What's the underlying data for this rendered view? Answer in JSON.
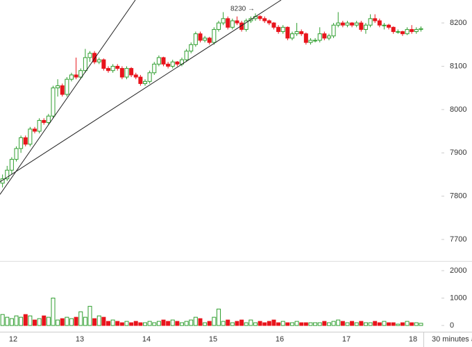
{
  "chart_data": [
    {
      "type": "candlestick",
      "up_color": "#2e9e2e",
      "down_color": "#e8141c",
      "annotation": "8230 →",
      "x": [
        11.84,
        11.909,
        11.978,
        12.047,
        12.116,
        12.185,
        12.254,
        12.323,
        12.392,
        12.461,
        12.53,
        12.599,
        12.668,
        12.737,
        12.806,
        12.875,
        12.944,
        13.013,
        13.082,
        13.151,
        13.22,
        13.289,
        13.358,
        13.427,
        13.496,
        13.565,
        13.634,
        13.703,
        13.772,
        13.841,
        13.91,
        13.979,
        14.048,
        14.117,
        14.186,
        14.255,
        14.324,
        14.393,
        14.462,
        14.531,
        14.6,
        14.669,
        14.738,
        14.807,
        14.876,
        14.945,
        15.014,
        15.083,
        15.152,
        15.221,
        15.29,
        15.359,
        15.428,
        15.497,
        15.566,
        15.635,
        15.704,
        15.773,
        15.842,
        15.911,
        15.98,
        16.049,
        16.118,
        16.187,
        16.256,
        16.325,
        16.394,
        16.463,
        16.532,
        16.601,
        16.67,
        16.739,
        16.808,
        16.877,
        16.946,
        17.015,
        17.084,
        17.153,
        17.222,
        17.291,
        17.36,
        17.429,
        17.498,
        17.567,
        17.636,
        17.705,
        17.774,
        17.843,
        17.912,
        17.981,
        18.05,
        18.119
      ],
      "candles": [
        [
          7830,
          7850,
          7820,
          7840
        ],
        [
          7840,
          7870,
          7835,
          7860
        ],
        [
          7860,
          7890,
          7850,
          7885
        ],
        [
          7885,
          7915,
          7880,
          7910
        ],
        [
          7910,
          7940,
          7900,
          7935
        ],
        [
          7935,
          7940,
          7915,
          7920
        ],
        [
          7920,
          7960,
          7915,
          7955
        ],
        [
          7955,
          7960,
          7945,
          7950
        ],
        [
          7950,
          7980,
          7945,
          7975
        ],
        [
          7975,
          7980,
          7965,
          7970
        ],
        [
          7970,
          7990,
          7965,
          7985
        ],
        [
          7985,
          8055,
          7980,
          8050
        ],
        [
          8050,
          8070,
          8030,
          8055
        ],
        [
          8055,
          8060,
          8030,
          8035
        ],
        [
          8035,
          8075,
          8030,
          8070
        ],
        [
          8070,
          8085,
          8065,
          8080
        ],
        [
          8080,
          8120,
          8070,
          8075
        ],
        [
          8075,
          8095,
          8070,
          8090
        ],
        [
          8090,
          8140,
          8085,
          8120
        ],
        [
          8120,
          8135,
          8110,
          8130
        ],
        [
          8130,
          8135,
          8105,
          8110
        ],
        [
          8110,
          8120,
          8105,
          8115
        ],
        [
          8115,
          8118,
          8090,
          8095
        ],
        [
          8095,
          8100,
          8085,
          8090
        ],
        [
          8090,
          8105,
          8085,
          8100
        ],
        [
          8100,
          8105,
          8090,
          8095
        ],
        [
          8095,
          8100,
          8070,
          8075
        ],
        [
          8075,
          8100,
          8070,
          8095
        ],
        [
          8095,
          8098,
          8075,
          8080
        ],
        [
          8080,
          8085,
          8070,
          8075
        ],
        [
          8075,
          8080,
          8055,
          8060
        ],
        [
          8060,
          8070,
          8055,
          8065
        ],
        [
          8065,
          8090,
          8060,
          8085
        ],
        [
          8085,
          8110,
          8080,
          8105
        ],
        [
          8105,
          8125,
          8100,
          8120
        ],
        [
          8120,
          8122,
          8100,
          8105
        ],
        [
          8105,
          8110,
          8095,
          8100
        ],
        [
          8100,
          8115,
          8095,
          8110
        ],
        [
          8110,
          8112,
          8100,
          8105
        ],
        [
          8105,
          8120,
          8100,
          8115
        ],
        [
          8115,
          8140,
          8110,
          8135
        ],
        [
          8135,
          8155,
          8130,
          8150
        ],
        [
          8150,
          8180,
          8145,
          8175
        ],
        [
          8175,
          8180,
          8155,
          8160
        ],
        [
          8160,
          8170,
          8155,
          8165
        ],
        [
          8165,
          8168,
          8150,
          8155
        ],
        [
          8155,
          8190,
          8150,
          8185
        ],
        [
          8185,
          8205,
          8180,
          8200
        ],
        [
          8200,
          8225,
          8195,
          8210
        ],
        [
          8210,
          8215,
          8185,
          8190
        ],
        [
          8190,
          8210,
          8185,
          8205
        ],
        [
          8205,
          8215,
          8195,
          8200
        ],
        [
          8200,
          8205,
          8180,
          8185
        ],
        [
          8185,
          8210,
          8180,
          8205
        ],
        [
          8205,
          8215,
          8200,
          8210
        ],
        [
          8210,
          8222,
          8205,
          8215
        ],
        [
          8215,
          8218,
          8205,
          8210
        ],
        [
          8210,
          8215,
          8200,
          8205
        ],
        [
          8205,
          8208,
          8195,
          8200
        ],
        [
          8200,
          8202,
          8185,
          8190
        ],
        [
          8190,
          8195,
          8175,
          8180
        ],
        [
          8180,
          8195,
          8175,
          8190
        ],
        [
          8190,
          8192,
          8160,
          8165
        ],
        [
          8165,
          8180,
          8160,
          8175
        ],
        [
          8175,
          8200,
          8170,
          8180
        ],
        [
          8180,
          8185,
          8170,
          8175
        ],
        [
          8175,
          8178,
          8150,
          8155
        ],
        [
          8155,
          8165,
          8150,
          8160
        ],
        [
          8160,
          8165,
          8155,
          8160
        ],
        [
          8160,
          8190,
          8155,
          8175
        ],
        [
          8175,
          8180,
          8160,
          8165
        ],
        [
          8165,
          8175,
          8160,
          8170
        ],
        [
          8170,
          8200,
          8165,
          8195
        ],
        [
          8195,
          8225,
          8190,
          8200
        ],
        [
          8200,
          8205,
          8190,
          8195
        ],
        [
          8195,
          8205,
          8190,
          8200
        ],
        [
          8200,
          8202,
          8190,
          8195
        ],
        [
          8195,
          8205,
          8190,
          8200
        ],
        [
          8200,
          8205,
          8180,
          8185
        ],
        [
          8185,
          8200,
          8175,
          8195
        ],
        [
          8195,
          8220,
          8190,
          8210
        ],
        [
          8210,
          8220,
          8200,
          8205
        ],
        [
          8205,
          8210,
          8190,
          8195
        ],
        [
          8195,
          8200,
          8185,
          8195
        ],
        [
          8195,
          8198,
          8185,
          8190
        ],
        [
          8190,
          8192,
          8175,
          8180
        ],
        [
          8180,
          8185,
          8175,
          8180
        ],
        [
          8180,
          8182,
          8170,
          8175
        ],
        [
          8175,
          8190,
          8172,
          8185
        ],
        [
          8185,
          8195,
          8175,
          8180
        ],
        [
          8180,
          8190,
          8175,
          8185
        ],
        [
          8185,
          8192,
          8180,
          8187
        ]
      ],
      "trendlines": [
        {
          "x": [
            11.802,
            13.833
          ],
          "y": [
            7804,
            8253
          ]
        },
        {
          "x": [
            11.802,
            16.021
          ],
          "y": [
            7833,
            8253
          ]
        }
      ],
      "xlim": [
        11.802,
        18.156
      ],
      "xticks": [
        12,
        13,
        14,
        15,
        16,
        17,
        18
      ],
      "ylim": [
        7652,
        8253
      ],
      "yticks": [
        7700,
        7800,
        7900,
        8000,
        8100,
        8200
      ]
    },
    {
      "type": "volume",
      "x_label": "30 minutes a",
      "values": [
        400,
        300,
        250,
        350,
        300,
        400,
        350,
        200,
        250,
        350,
        300,
        1000,
        200,
        250,
        300,
        250,
        300,
        500,
        300,
        700,
        250,
        350,
        300,
        150,
        200,
        150,
        100,
        150,
        100,
        150,
        100,
        100,
        150,
        100,
        150,
        200,
        150,
        200,
        150,
        100,
        150,
        200,
        300,
        250,
        100,
        150,
        300,
        600,
        150,
        200,
        100,
        150,
        200,
        100,
        200,
        100,
        150,
        100,
        150,
        200,
        100,
        150,
        100,
        100,
        150,
        100,
        100,
        100,
        100,
        100,
        150,
        100,
        150,
        200,
        150,
        100,
        150,
        100,
        150,
        100,
        100,
        150,
        100,
        150,
        100,
        100,
        50,
        100,
        150,
        100,
        100,
        80
      ],
      "ylim": [
        -228,
        2329
      ],
      "yticks": [
        0,
        1000,
        2000
      ]
    }
  ]
}
